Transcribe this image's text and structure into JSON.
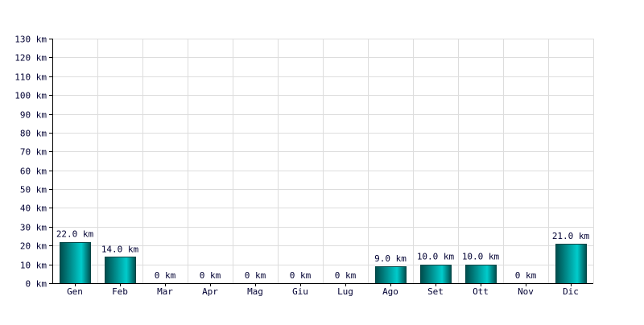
{
  "chart_data": {
    "type": "bar",
    "categories": [
      "Gen",
      "Feb",
      "Mar",
      "Apr",
      "Mag",
      "Giu",
      "Lug",
      "Ago",
      "Set",
      "Ott",
      "Nov",
      "Dic"
    ],
    "values": [
      22,
      14,
      0,
      0,
      0,
      0,
      0,
      9,
      10,
      10,
      0,
      21
    ],
    "value_labels": [
      "22.0 km",
      "14.0 km",
      "0 km",
      "0 km",
      "0 km",
      "0 km",
      "0 km",
      "9.0 km",
      "10.0 km",
      "10.0 km",
      "0 km",
      "21.0 km"
    ],
    "y_ticks": [
      0,
      10,
      20,
      30,
      40,
      50,
      60,
      70,
      80,
      90,
      100,
      110,
      120,
      130
    ],
    "y_tick_labels": [
      "0 km",
      "10 km",
      "20 km",
      "30 km",
      "40 km",
      "50 km",
      "60 km",
      "70 km",
      "80 km",
      "90 km",
      "100 km",
      "110 km",
      "120 km",
      "130 km"
    ],
    "ylim": [
      0,
      130
    ],
    "grid": true,
    "title": "",
    "xlabel": "",
    "ylabel": "",
    "colors": {
      "bar_edge": "#00cccc",
      "bar_center": "#004c4c",
      "grid": "#dddddd",
      "text": "#000033"
    }
  }
}
